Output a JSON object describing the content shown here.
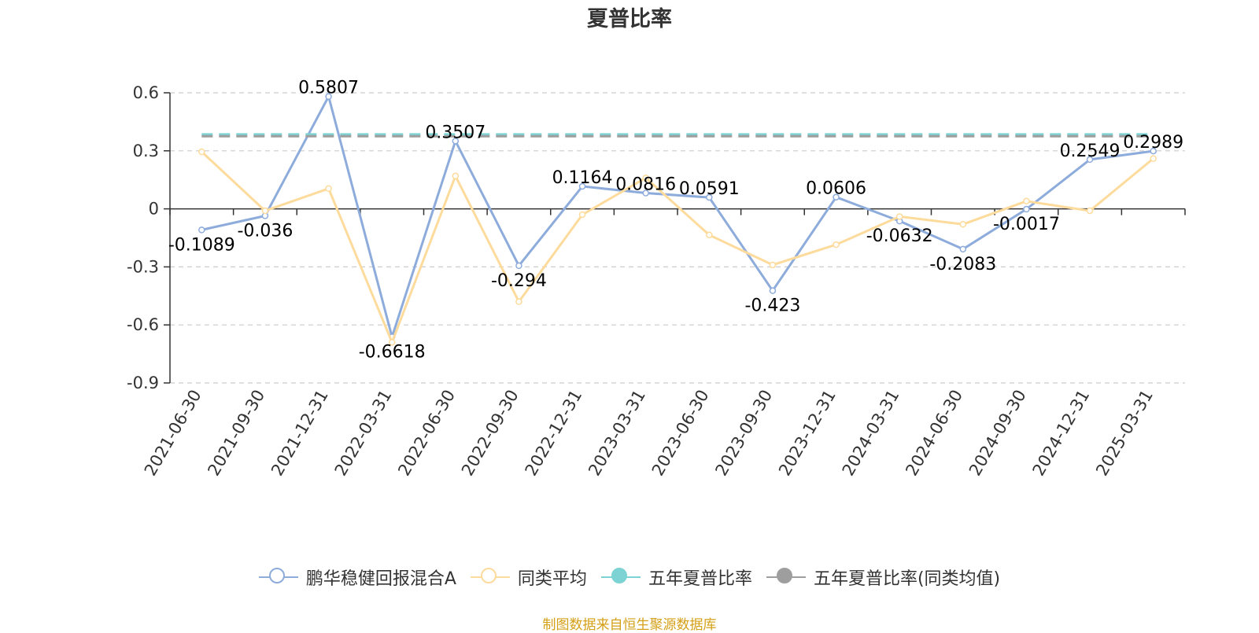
{
  "title": "夏普比率",
  "source_note": "制图数据来自恒生聚源数据库",
  "legend": [
    {
      "label": "鹏华稳健回报混合A",
      "color": "#8eacdb",
      "style": "hollow-line"
    },
    {
      "label": "同类平均",
      "color": "#fddb9c",
      "style": "hollow-line"
    },
    {
      "label": "五年夏普比率",
      "color": "#7dd3d3",
      "style": "filled-line"
    },
    {
      "label": "五年夏普比率(同类均值)",
      "color": "#9e9e9e",
      "style": "filled-line"
    }
  ],
  "chart_data": {
    "type": "line",
    "title": "夏普比率",
    "categories": [
      "2021-06-30",
      "2021-09-30",
      "2021-12-31",
      "2022-03-31",
      "2022-06-30",
      "2022-09-30",
      "2022-12-31",
      "2023-03-31",
      "2023-06-30",
      "2023-09-30",
      "2023-12-31",
      "2024-03-31",
      "2024-06-30",
      "2024-09-30",
      "2024-12-31",
      "2025-03-31"
    ],
    "ylim": [
      -0.9,
      0.6
    ],
    "yticks": [
      "0.6",
      "0.3",
      "0",
      "-0.3",
      "-0.6",
      "-0.9"
    ],
    "grid": true,
    "legend_position": "bottom",
    "series": [
      {
        "name": "鹏华稳健回报混合A",
        "color": "#8eacdb",
        "values": [
          -0.1089,
          -0.036,
          0.5807,
          -0.6618,
          0.3507,
          -0.294,
          0.1164,
          0.0816,
          0.0591,
          -0.423,
          0.0606,
          -0.0632,
          -0.2083,
          -0.0017,
          0.2549,
          0.2989
        ],
        "labels": [
          "-0.1089",
          "-0.036",
          "0.5807",
          "-0.6618",
          "0.3507",
          "-0.294",
          "0.1164",
          "0.0816",
          "0.0591",
          "-0.423",
          "0.0606",
          "-0.0632",
          "-0.2083",
          "-0.0017",
          "0.2549",
          "0.2989"
        ]
      },
      {
        "name": "同类平均",
        "color": "#fddb9c",
        "values": [
          0.295,
          -0.01,
          0.105,
          -0.69,
          0.17,
          -0.48,
          -0.03,
          0.16,
          -0.135,
          -0.29,
          -0.185,
          -0.04,
          -0.08,
          0.04,
          -0.01,
          0.26
        ]
      },
      {
        "name": "五年夏普比率",
        "color": "#7dd3d3",
        "dashed": true,
        "values": [
          0.385,
          0.385,
          0.385,
          0.385,
          0.385,
          0.385,
          0.385,
          0.385,
          0.385,
          0.385,
          0.385,
          0.385,
          0.385,
          0.385,
          0.385,
          0.385
        ]
      },
      {
        "name": "五年夏普比率(同类均值)",
        "color": "#9e9e9e",
        "dashed": true,
        "values": [
          0.375,
          0.375,
          0.375,
          0.375,
          0.375,
          0.375,
          0.375,
          0.375,
          0.375,
          0.375,
          0.375,
          0.375,
          0.375,
          0.375,
          0.375,
          0.375
        ]
      }
    ]
  }
}
